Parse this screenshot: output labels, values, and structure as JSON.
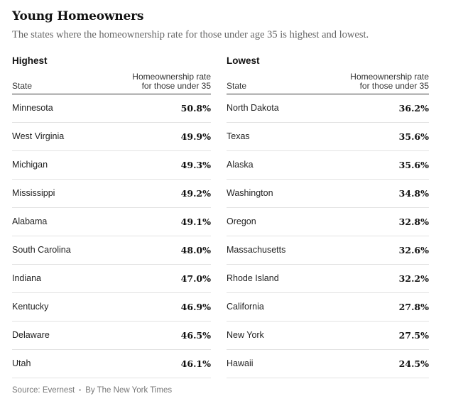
{
  "header": {
    "title": "Young Homeowners",
    "subtitle": "The states where the homeownership rate for those under age 35 is highest and lowest."
  },
  "tables": {
    "highest": {
      "title": "Highest",
      "col_state": "State",
      "col_rate_line1": "Homeownership rate",
      "col_rate_line2": "for those under 35",
      "rows": [
        {
          "state": "Minnesota",
          "rate": "50.8%"
        },
        {
          "state": "West Virginia",
          "rate": "49.9%"
        },
        {
          "state": "Michigan",
          "rate": "49.3%"
        },
        {
          "state": "Mississippi",
          "rate": "49.2%"
        },
        {
          "state": "Alabama",
          "rate": "49.1%"
        },
        {
          "state": "South Carolina",
          "rate": "48.0%"
        },
        {
          "state": "Indiana",
          "rate": "47.0%"
        },
        {
          "state": "Kentucky",
          "rate": "46.9%"
        },
        {
          "state": "Delaware",
          "rate": "46.5%"
        },
        {
          "state": "Utah",
          "rate": "46.1%"
        }
      ]
    },
    "lowest": {
      "title": "Lowest",
      "col_state": "State",
      "col_rate_line1": "Homeownership rate",
      "col_rate_line2": "for those under 35",
      "rows": [
        {
          "state": "North Dakota",
          "rate": "36.2%"
        },
        {
          "state": "Texas",
          "rate": "35.6%"
        },
        {
          "state": "Alaska",
          "rate": "35.6%"
        },
        {
          "state": "Washington",
          "rate": "34.8%"
        },
        {
          "state": "Oregon",
          "rate": "32.8%"
        },
        {
          "state": "Massachusetts",
          "rate": "32.6%"
        },
        {
          "state": "Rhode Island",
          "rate": "32.2%"
        },
        {
          "state": "California",
          "rate": "27.8%"
        },
        {
          "state": "New York",
          "rate": "27.5%"
        },
        {
          "state": "Hawaii",
          "rate": "24.5%"
        }
      ]
    }
  },
  "footer": {
    "source": "Source: Evernest",
    "byline": "By The New York Times"
  }
}
